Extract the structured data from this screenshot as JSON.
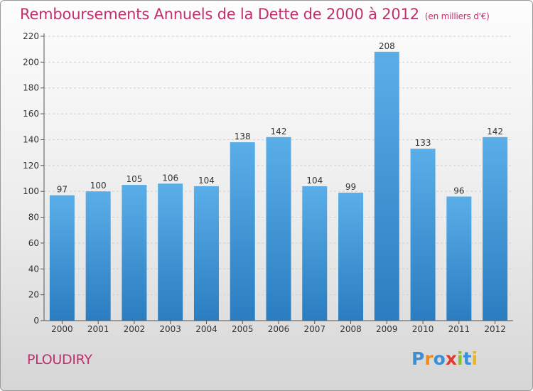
{
  "chart_data": {
    "type": "bar",
    "title": "Remboursements Annuels de la Dette de 2000 à 2012",
    "subtitle": "(en milliers d'€)",
    "categories": [
      "2000",
      "2001",
      "2002",
      "2003",
      "2004",
      "2005",
      "2006",
      "2007",
      "2008",
      "2009",
      "2010",
      "2011",
      "2012"
    ],
    "values": [
      97,
      100,
      105,
      106,
      104,
      138,
      142,
      104,
      99,
      208,
      133,
      96,
      142
    ],
    "ylim": [
      0,
      220
    ],
    "yticks": [
      0,
      20,
      40,
      60,
      80,
      100,
      120,
      140,
      160,
      180,
      200,
      220
    ],
    "grid": true,
    "bar_color_top": "#5aaee8",
    "bar_color_bottom": "#2a7dc0",
    "title_color": "#c0306a"
  },
  "commune": "PLOUDIRY",
  "logo": {
    "letters": [
      "P",
      "r",
      "o",
      "x",
      "i",
      "t",
      "i"
    ],
    "colors": [
      "#3a8fd6",
      "#f08a1c",
      "#3a8fd6",
      "#e23b2e",
      "#8bbf2a",
      "#3a8fd6",
      "#f0b21c"
    ]
  }
}
